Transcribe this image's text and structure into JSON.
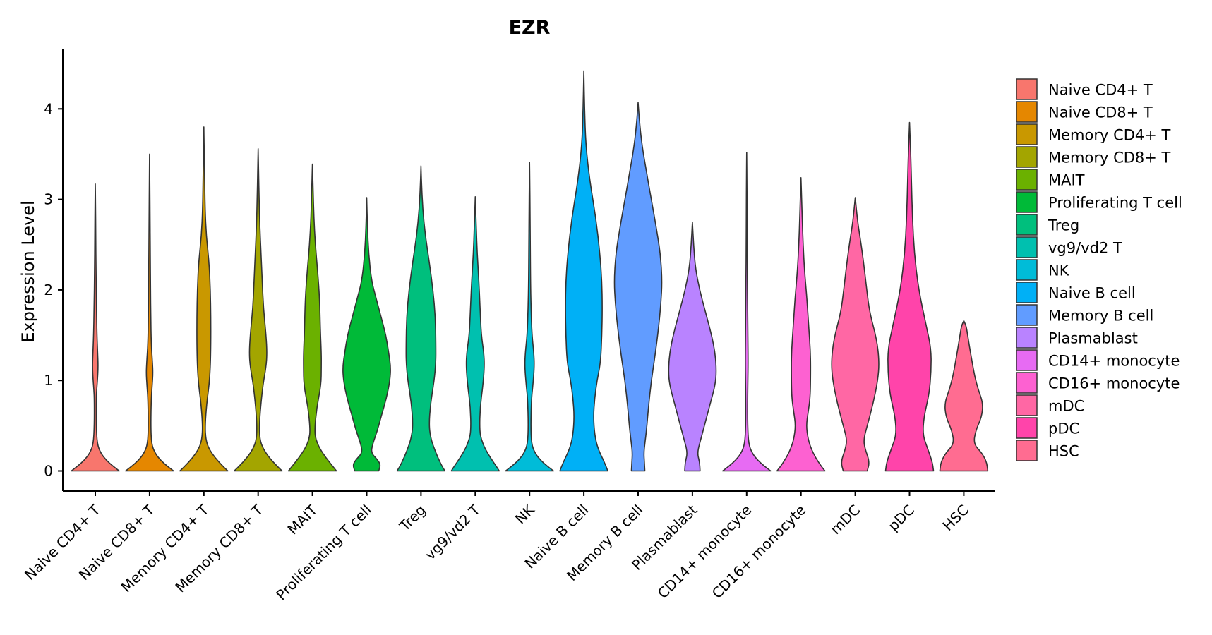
{
  "chart_data": {
    "type": "violin",
    "title": "EZR",
    "xlabel": "",
    "ylabel": "Expression Level",
    "ylim": [
      -0.22,
      4.65
    ],
    "yticks": [
      0,
      1,
      2,
      3,
      4
    ],
    "legend_position": "right",
    "categories": [
      {
        "name": "Naive CD4+ T",
        "color": "#F8766D",
        "max": 3.17,
        "profile": [
          [
            0,
            1.0
          ],
          [
            0.05,
            0.75
          ],
          [
            0.12,
            0.45
          ],
          [
            0.2,
            0.22
          ],
          [
            0.3,
            0.08
          ],
          [
            0.5,
            0.04
          ],
          [
            0.8,
            0.04
          ],
          [
            0.9,
            0.06
          ],
          [
            1.0,
            0.09
          ],
          [
            1.15,
            0.12
          ],
          [
            1.3,
            0.1
          ],
          [
            1.5,
            0.07
          ],
          [
            1.8,
            0.05
          ],
          [
            2.2,
            0.03
          ],
          [
            2.6,
            0.02
          ],
          [
            3.0,
            0.01
          ],
          [
            3.17,
            0.0
          ]
        ]
      },
      {
        "name": "Naive CD8+ T",
        "color": "#E58700",
        "max": 3.5,
        "profile": [
          [
            0,
            1.0
          ],
          [
            0.05,
            0.75
          ],
          [
            0.12,
            0.45
          ],
          [
            0.2,
            0.22
          ],
          [
            0.3,
            0.08
          ],
          [
            0.5,
            0.05
          ],
          [
            0.8,
            0.07
          ],
          [
            0.95,
            0.11
          ],
          [
            1.08,
            0.14
          ],
          [
            1.2,
            0.12
          ],
          [
            1.4,
            0.07
          ],
          [
            1.7,
            0.05
          ],
          [
            2.0,
            0.04
          ],
          [
            2.4,
            0.03
          ],
          [
            2.8,
            0.02
          ],
          [
            3.2,
            0.01
          ],
          [
            3.5,
            0.0
          ]
        ]
      },
      {
        "name": "Memory CD4+ T",
        "color": "#C99800",
        "max": 3.8,
        "profile": [
          [
            0,
            1.0
          ],
          [
            0.05,
            0.8
          ],
          [
            0.15,
            0.45
          ],
          [
            0.25,
            0.2
          ],
          [
            0.35,
            0.08
          ],
          [
            0.5,
            0.05
          ],
          [
            0.75,
            0.12
          ],
          [
            0.95,
            0.22
          ],
          [
            1.15,
            0.27
          ],
          [
            1.4,
            0.29
          ],
          [
            1.7,
            0.29
          ],
          [
            2.0,
            0.27
          ],
          [
            2.3,
            0.22
          ],
          [
            2.6,
            0.1
          ],
          [
            2.9,
            0.05
          ],
          [
            3.3,
            0.03
          ],
          [
            3.6,
            0.01
          ],
          [
            3.8,
            0.0
          ]
        ]
      },
      {
        "name": "Memory CD8+ T",
        "color": "#A3A500",
        "max": 3.56,
        "profile": [
          [
            0,
            1.0
          ],
          [
            0.05,
            0.8
          ],
          [
            0.15,
            0.45
          ],
          [
            0.25,
            0.2
          ],
          [
            0.35,
            0.07
          ],
          [
            0.5,
            0.05
          ],
          [
            0.7,
            0.1
          ],
          [
            0.95,
            0.2
          ],
          [
            1.15,
            0.33
          ],
          [
            1.3,
            0.37
          ],
          [
            1.5,
            0.33
          ],
          [
            1.8,
            0.22
          ],
          [
            2.1,
            0.17
          ],
          [
            2.4,
            0.12
          ],
          [
            2.7,
            0.07
          ],
          [
            3.0,
            0.04
          ],
          [
            3.3,
            0.02
          ],
          [
            3.56,
            0.0
          ]
        ]
      },
      {
        "name": "MAIT",
        "color": "#6BB100",
        "max": 3.39,
        "profile": [
          [
            0,
            1.0
          ],
          [
            0.05,
            0.85
          ],
          [
            0.15,
            0.55
          ],
          [
            0.25,
            0.3
          ],
          [
            0.35,
            0.14
          ],
          [
            0.45,
            0.09
          ],
          [
            0.7,
            0.18
          ],
          [
            0.95,
            0.36
          ],
          [
            1.15,
            0.37
          ],
          [
            1.3,
            0.37
          ],
          [
            1.55,
            0.33
          ],
          [
            1.9,
            0.3
          ],
          [
            2.2,
            0.22
          ],
          [
            2.5,
            0.12
          ],
          [
            2.8,
            0.06
          ],
          [
            3.1,
            0.03
          ],
          [
            3.39,
            0.0
          ]
        ]
      },
      {
        "name": "Proliferating T cell",
        "color": "#00BA38",
        "max": 3.02,
        "profile": [
          [
            0,
            0.5
          ],
          [
            0.07,
            0.58
          ],
          [
            0.13,
            0.43
          ],
          [
            0.2,
            0.18
          ],
          [
            0.3,
            0.25
          ],
          [
            0.45,
            0.45
          ],
          [
            0.6,
            0.6
          ],
          [
            0.8,
            0.82
          ],
          [
            1.0,
            0.97
          ],
          [
            1.15,
            1.0
          ],
          [
            1.3,
            0.92
          ],
          [
            1.5,
            0.8
          ],
          [
            1.7,
            0.6
          ],
          [
            1.9,
            0.4
          ],
          [
            2.1,
            0.2
          ],
          [
            2.4,
            0.08
          ],
          [
            2.7,
            0.03
          ],
          [
            3.02,
            0.0
          ]
        ]
      },
      {
        "name": "Treg",
        "color": "#00BF7D",
        "max": 3.37,
        "profile": [
          [
            0,
            1.0
          ],
          [
            0.05,
            0.88
          ],
          [
            0.15,
            0.7
          ],
          [
            0.25,
            0.55
          ],
          [
            0.35,
            0.42
          ],
          [
            0.5,
            0.33
          ],
          [
            0.75,
            0.4
          ],
          [
            1.0,
            0.55
          ],
          [
            1.2,
            0.62
          ],
          [
            1.4,
            0.62
          ],
          [
            1.7,
            0.6
          ],
          [
            2.0,
            0.5
          ],
          [
            2.3,
            0.35
          ],
          [
            2.6,
            0.18
          ],
          [
            2.9,
            0.07
          ],
          [
            3.2,
            0.02
          ],
          [
            3.37,
            0.0
          ]
        ]
      },
      {
        "name": "vg9/vd2 T",
        "color": "#00C0AF",
        "max": 3.03,
        "profile": [
          [
            0,
            1.0
          ],
          [
            0.05,
            0.88
          ],
          [
            0.15,
            0.62
          ],
          [
            0.25,
            0.4
          ],
          [
            0.35,
            0.25
          ],
          [
            0.45,
            0.18
          ],
          [
            0.7,
            0.2
          ],
          [
            0.95,
            0.32
          ],
          [
            1.15,
            0.38
          ],
          [
            1.3,
            0.36
          ],
          [
            1.5,
            0.25
          ],
          [
            1.8,
            0.2
          ],
          [
            2.1,
            0.15
          ],
          [
            2.4,
            0.08
          ],
          [
            2.7,
            0.04
          ],
          [
            3.03,
            0.0
          ]
        ]
      },
      {
        "name": "NK",
        "color": "#00BCD8",
        "max": 3.41,
        "profile": [
          [
            0,
            1.0
          ],
          [
            0.05,
            0.75
          ],
          [
            0.12,
            0.45
          ],
          [
            0.2,
            0.22
          ],
          [
            0.3,
            0.08
          ],
          [
            0.5,
            0.05
          ],
          [
            0.8,
            0.08
          ],
          [
            0.95,
            0.14
          ],
          [
            1.15,
            0.2
          ],
          [
            1.3,
            0.18
          ],
          [
            1.5,
            0.1
          ],
          [
            1.8,
            0.06
          ],
          [
            2.1,
            0.04
          ],
          [
            2.5,
            0.03
          ],
          [
            2.9,
            0.02
          ],
          [
            3.2,
            0.01
          ],
          [
            3.41,
            0.0
          ]
        ]
      },
      {
        "name": "Naive B cell",
        "color": "#00B0F6",
        "max": 4.42,
        "profile": [
          [
            0,
            1.0
          ],
          [
            0.1,
            0.85
          ],
          [
            0.25,
            0.58
          ],
          [
            0.4,
            0.45
          ],
          [
            0.6,
            0.4
          ],
          [
            0.8,
            0.45
          ],
          [
            1.0,
            0.55
          ],
          [
            1.2,
            0.7
          ],
          [
            1.5,
            0.75
          ],
          [
            1.8,
            0.77
          ],
          [
            2.1,
            0.75
          ],
          [
            2.4,
            0.67
          ],
          [
            2.8,
            0.5
          ],
          [
            3.2,
            0.25
          ],
          [
            3.6,
            0.08
          ],
          [
            4.0,
            0.03
          ],
          [
            4.42,
            0.0
          ]
        ]
      },
      {
        "name": "Memory B cell",
        "color": "#619CFF",
        "max": 4.07,
        "profile": [
          [
            0,
            0.28
          ],
          [
            0.1,
            0.26
          ],
          [
            0.2,
            0.24
          ],
          [
            0.3,
            0.28
          ],
          [
            0.45,
            0.35
          ],
          [
            0.7,
            0.43
          ],
          [
            1.0,
            0.55
          ],
          [
            1.3,
            0.72
          ],
          [
            1.6,
            0.86
          ],
          [
            1.85,
            0.95
          ],
          [
            2.1,
            1.0
          ],
          [
            2.4,
            0.93
          ],
          [
            2.7,
            0.75
          ],
          [
            3.0,
            0.55
          ],
          [
            3.3,
            0.35
          ],
          [
            3.6,
            0.16
          ],
          [
            3.85,
            0.06
          ],
          [
            4.07,
            0.0
          ]
        ]
      },
      {
        "name": "Plasmablast",
        "color": "#B983FF",
        "max": 2.75,
        "profile": [
          [
            0,
            0.32
          ],
          [
            0.1,
            0.3
          ],
          [
            0.2,
            0.2
          ],
          [
            0.35,
            0.35
          ],
          [
            0.55,
            0.55
          ],
          [
            0.75,
            0.75
          ],
          [
            0.95,
            0.95
          ],
          [
            1.1,
            1.0
          ],
          [
            1.3,
            0.95
          ],
          [
            1.5,
            0.8
          ],
          [
            1.75,
            0.55
          ],
          [
            2.0,
            0.3
          ],
          [
            2.25,
            0.12
          ],
          [
            2.5,
            0.05
          ],
          [
            2.75,
            0.0
          ]
        ]
      },
      {
        "name": "CD14+ monocyte",
        "color": "#E76BF3",
        "max": 3.52,
        "profile": [
          [
            0,
            1.0
          ],
          [
            0.05,
            0.75
          ],
          [
            0.12,
            0.45
          ],
          [
            0.2,
            0.22
          ],
          [
            0.3,
            0.08
          ],
          [
            0.5,
            0.04
          ],
          [
            0.8,
            0.04
          ],
          [
            1.0,
            0.05
          ],
          [
            1.2,
            0.06
          ],
          [
            1.5,
            0.05
          ],
          [
            1.8,
            0.04
          ],
          [
            2.1,
            0.03
          ],
          [
            2.5,
            0.02
          ],
          [
            2.9,
            0.015
          ],
          [
            3.2,
            0.01
          ],
          [
            3.52,
            0.0
          ]
        ]
      },
      {
        "name": "CD16+ monocyte",
        "color": "#FD61D1",
        "max": 3.24,
        "profile": [
          [
            0,
            1.0
          ],
          [
            0.05,
            0.85
          ],
          [
            0.15,
            0.6
          ],
          [
            0.25,
            0.42
          ],
          [
            0.35,
            0.3
          ],
          [
            0.5,
            0.22
          ],
          [
            0.65,
            0.3
          ],
          [
            0.8,
            0.38
          ],
          [
            1.0,
            0.4
          ],
          [
            1.3,
            0.4
          ],
          [
            1.6,
            0.32
          ],
          [
            1.9,
            0.25
          ],
          [
            2.2,
            0.15
          ],
          [
            2.5,
            0.09
          ],
          [
            2.8,
            0.05
          ],
          [
            3.0,
            0.03
          ],
          [
            3.24,
            0.0
          ]
        ]
      },
      {
        "name": "mDC",
        "color": "#FF67A4",
        "max": 3.02,
        "profile": [
          [
            0,
            0.5
          ],
          [
            0.1,
            0.6
          ],
          [
            0.25,
            0.4
          ],
          [
            0.35,
            0.35
          ],
          [
            0.5,
            0.5
          ],
          [
            0.75,
            0.75
          ],
          [
            1.0,
            0.94
          ],
          [
            1.2,
            1.0
          ],
          [
            1.45,
            0.9
          ],
          [
            1.75,
            0.6
          ],
          [
            2.0,
            0.48
          ],
          [
            2.3,
            0.35
          ],
          [
            2.55,
            0.22
          ],
          [
            2.75,
            0.1
          ],
          [
            3.02,
            0.0
          ]
        ]
      },
      {
        "name": "pDC",
        "color": "#F4A",
        "max": 3.85,
        "profile": [
          [
            0,
            1.0
          ],
          [
            0.1,
            0.95
          ],
          [
            0.25,
            0.75
          ],
          [
            0.4,
            0.55
          ],
          [
            0.6,
            0.6
          ],
          [
            0.85,
            0.82
          ],
          [
            1.1,
            0.9
          ],
          [
            1.35,
            0.9
          ],
          [
            1.6,
            0.7
          ],
          [
            2.0,
            0.38
          ],
          [
            2.4,
            0.2
          ],
          [
            2.8,
            0.12
          ],
          [
            3.2,
            0.08
          ],
          [
            3.5,
            0.05
          ],
          [
            3.85,
            0.0
          ]
        ]
      },
      {
        "name": "HSC",
        "color": "#FF6C91",
        "max": 1.66,
        "profile": [
          [
            0,
            1.0
          ],
          [
            0.1,
            0.95
          ],
          [
            0.2,
            0.75
          ],
          [
            0.3,
            0.4
          ],
          [
            0.45,
            0.5
          ],
          [
            0.6,
            0.75
          ],
          [
            0.75,
            0.8
          ],
          [
            0.9,
            0.6
          ],
          [
            1.05,
            0.45
          ],
          [
            1.2,
            0.35
          ],
          [
            1.35,
            0.25
          ],
          [
            1.5,
            0.16
          ],
          [
            1.6,
            0.1
          ],
          [
            1.66,
            0.0
          ]
        ]
      }
    ]
  }
}
